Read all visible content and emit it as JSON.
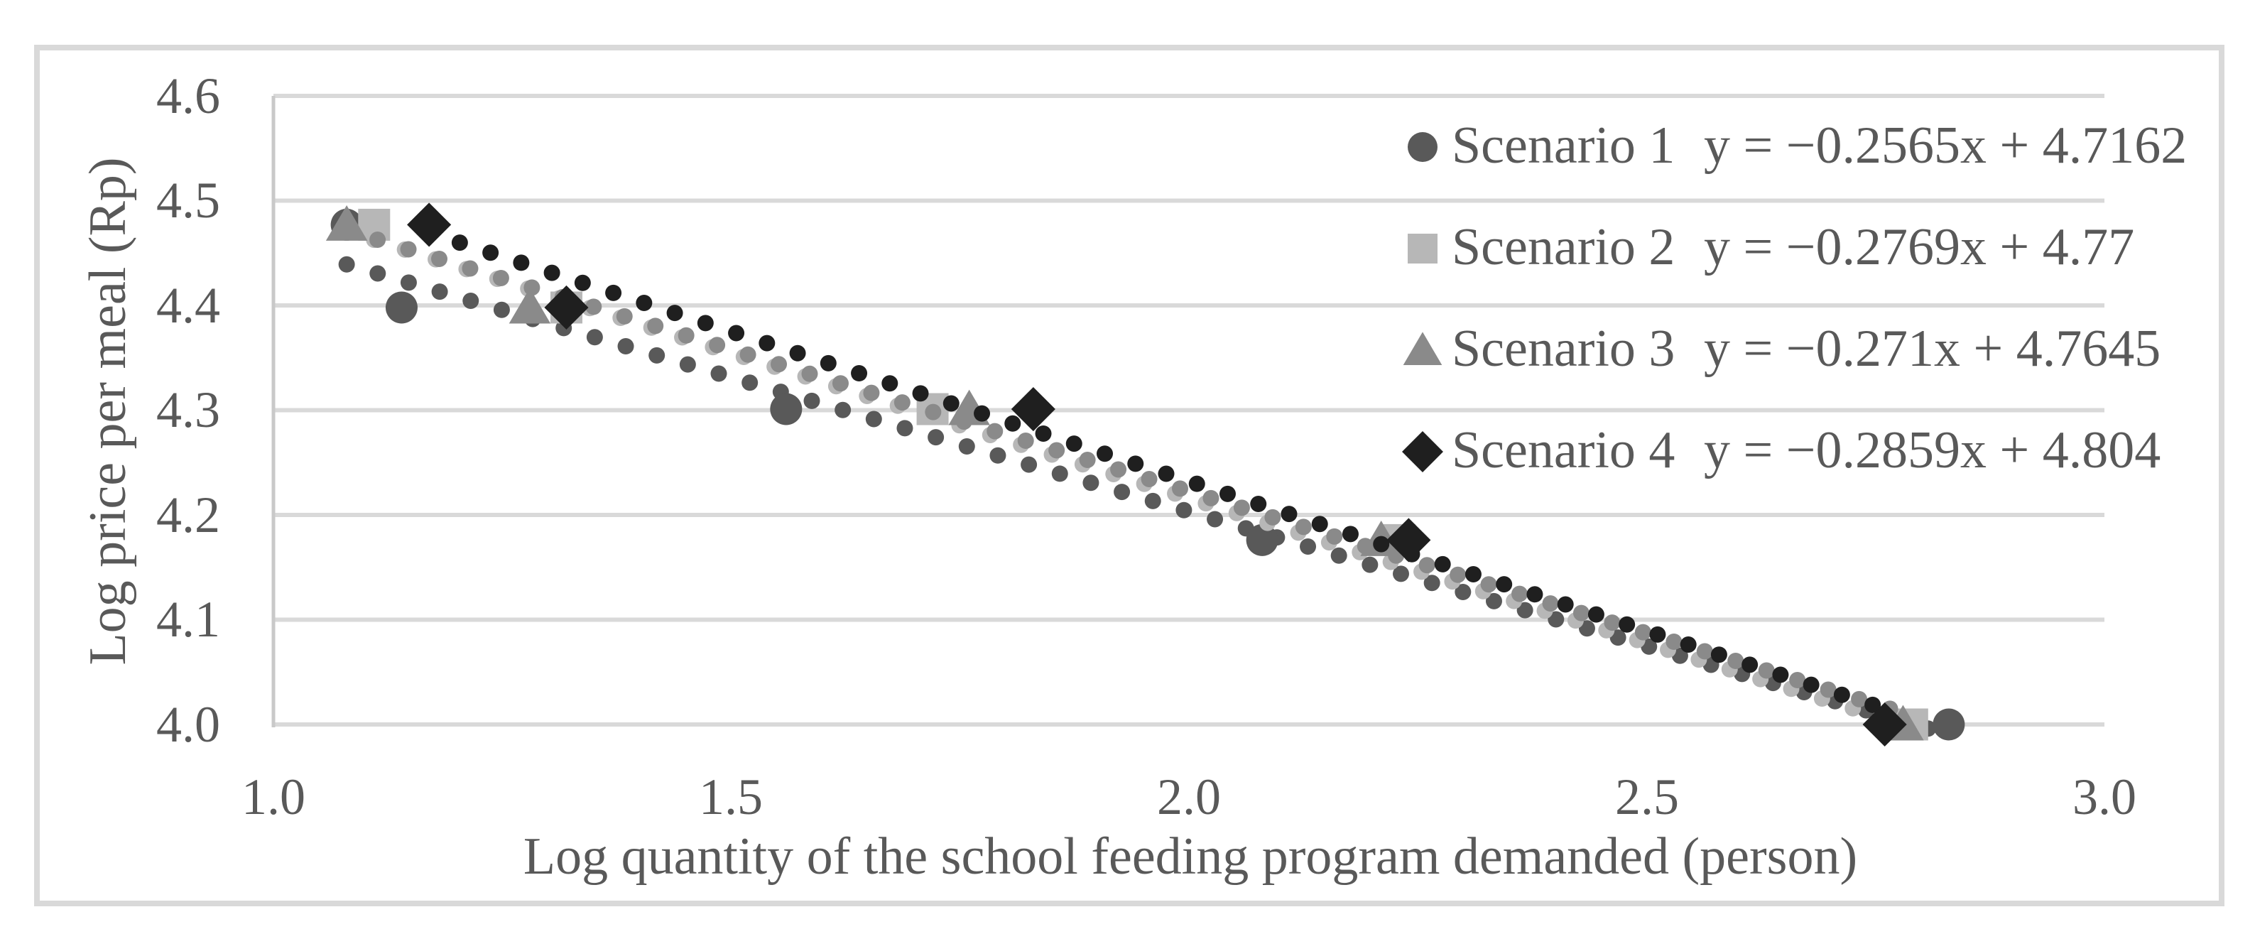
{
  "figure": {
    "background": "#ffffff",
    "frame_color": "#d9d9d9",
    "text_color": "#595959",
    "axis_line_color": "#c9c9c9"
  },
  "chart_data": {
    "type": "scatter",
    "title": "",
    "xlabel": "Log quantity of the school feeding program demanded (person)",
    "ylabel": "Log price per meal (Rp)",
    "xlim": [
      1.0,
      3.0
    ],
    "ylim": [
      4.0,
      4.6
    ],
    "x_ticks": [
      "1.0",
      "1.5",
      "2.0",
      "2.5",
      "3.0"
    ],
    "y_ticks": [
      "4.6",
      "4.5",
      "4.4",
      "4.3",
      "4.2",
      "4.1",
      "4.0"
    ],
    "grid": true,
    "gridline_color": "#d9d9d9",
    "legend_position": "inside-top-right",
    "trendline_style": "dotted",
    "series": [
      {
        "name": "Scenario 1",
        "marker": "circle",
        "color": "#595959",
        "equation": "y = −0.2565x + 4.7162",
        "trend": {
          "slope": -0.2565,
          "intercept": 4.7162
        },
        "points": [
          [
            1.08,
            4.477
          ],
          [
            1.14,
            4.398
          ],
          [
            1.56,
            4.301
          ],
          [
            2.08,
            4.176
          ],
          [
            2.83,
            4.0
          ]
        ]
      },
      {
        "name": "Scenario 2",
        "marker": "square",
        "color": "#b7b7b7",
        "equation": "y = −0.2769x + 4.77",
        "trend": {
          "slope": -0.2769,
          "intercept": 4.77
        },
        "points": [
          [
            1.11,
            4.477
          ],
          [
            1.32,
            4.398
          ],
          [
            1.72,
            4.301
          ],
          [
            2.23,
            4.176
          ],
          [
            2.79,
            4.0
          ]
        ]
      },
      {
        "name": "Scenario 3",
        "marker": "triangle",
        "color": "#8a8a8a",
        "equation": "y = −0.271x + 4.7645",
        "trend": {
          "slope": -0.271,
          "intercept": 4.7645
        },
        "points": [
          [
            1.08,
            4.477
          ],
          [
            1.28,
            4.398
          ],
          [
            1.76,
            4.301
          ],
          [
            2.21,
            4.176
          ],
          [
            2.78,
            4.0
          ]
        ]
      },
      {
        "name": "Scenario 4",
        "marker": "diamond",
        "color": "#1f1f1f",
        "equation": "y = −0.2859x + 4.804",
        "trend": {
          "slope": -0.2859,
          "intercept": 4.804
        },
        "points": [
          [
            1.17,
            4.477
          ],
          [
            1.32,
            4.398
          ],
          [
            1.83,
            4.301
          ],
          [
            2.24,
            4.176
          ],
          [
            2.76,
            4.0
          ]
        ]
      }
    ]
  }
}
